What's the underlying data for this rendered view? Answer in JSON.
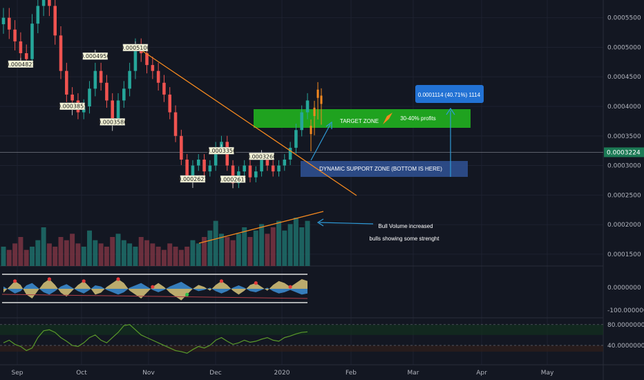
{
  "chart_data": {
    "type": "candlestick",
    "title": "",
    "xlabel": "",
    "ylabel": "",
    "ylim": [
      0.00013,
      0.00058
    ],
    "price_ticks": [
      "0.0005500",
      "0.0005000",
      "0.0004500",
      "0.0004000",
      "0.0003500",
      "0.0003000",
      "0.0002500",
      "0.0002000",
      "0.0001500"
    ],
    "price_tick_values": [
      0.00055,
      0.0005,
      0.00045,
      0.0004,
      0.00035,
      0.0003,
      0.00025,
      0.0002,
      0.00015
    ],
    "time_labels": [
      "Sep",
      "Oct",
      "Nov",
      "Dec",
      "2020",
      "Feb",
      "Mar",
      "Apr",
      "May"
    ],
    "current_price_label": "0.0003224",
    "current_price": 0.0003224,
    "price_series": [
      0.00055,
      0.00053,
      0.00051,
      0.00049,
      0.00048,
      0.00054,
      0.00057,
      0.00058,
      0.00057,
      0.00052,
      0.00046,
      0.00042,
      0.00041,
      0.00039,
      0.0004,
      0.00043,
      0.00046,
      0.00044,
      0.00041,
      0.00038,
      0.00041,
      0.00043,
      0.00046,
      0.0005,
      0.00049,
      0.00047,
      0.00046,
      0.00044,
      0.00042,
      0.00039,
      0.00035,
      0.00031,
      0.00028,
      0.0003,
      0.00031,
      0.00029,
      0.0003,
      0.00033,
      0.00034,
      0.0003,
      0.00027,
      0.00029,
      0.0003,
      0.00028,
      0.00029,
      0.00031,
      0.0003,
      0.00029,
      0.0003,
      0.00031,
      0.00033,
      0.00036,
      0.00039,
      0.00041
    ],
    "swing_labels": [
      {
        "text": "0.0004821",
        "index": 3,
        "value": 0.0004821
      },
      {
        "text": "0.0003851",
        "index": 12,
        "value": 0.0003851
      },
      {
        "text": "0.0004956",
        "index": 16,
        "value": 0.0004956
      },
      {
        "text": "0.0003586",
        "index": 19,
        "value": 0.0003586
      },
      {
        "text": "0.0005100",
        "index": 23,
        "value": 0.00051
      },
      {
        "text": "0.0002621",
        "index": 33,
        "value": 0.0002621
      },
      {
        "text": "0.0003356",
        "index": 38,
        "value": 0.0003356
      },
      {
        "text": "0.0002617",
        "index": 40,
        "value": 0.0002617
      },
      {
        "text": "0.0003260",
        "index": 45,
        "value": 0.000326
      }
    ],
    "volume_series": [
      6,
      5,
      7,
      9,
      5,
      6,
      8,
      12,
      7,
      6,
      9,
      8,
      10,
      7,
      6,
      11,
      8,
      7,
      6,
      9,
      10,
      8,
      7,
      6,
      9,
      8,
      7,
      6,
      5,
      7,
      6,
      5,
      6,
      8,
      7,
      9,
      11,
      14,
      10,
      9,
      8,
      10,
      12,
      9,
      11,
      13,
      10,
      12,
      14,
      11,
      13,
      15,
      12,
      14
    ],
    "oscillator_series": [
      -20,
      10,
      40,
      20,
      -30,
      -50,
      -10,
      30,
      50,
      20,
      -20,
      -40,
      -10,
      20,
      40,
      10,
      -30,
      -20,
      10,
      30,
      50,
      30,
      -10,
      -30,
      -50,
      -20,
      10,
      30,
      10,
      -20,
      -40,
      -60,
      -30,
      0,
      20,
      10,
      -10,
      20,
      40,
      20,
      -10,
      -30,
      -10,
      20,
      30,
      10,
      -10,
      20,
      40,
      30,
      10,
      30,
      50,
      40
    ],
    "oscillator_ticks": [
      "0.0000000",
      "-100.0000000"
    ],
    "rsi_series": [
      45,
      50,
      42,
      38,
      30,
      35,
      55,
      68,
      70,
      65,
      55,
      48,
      40,
      38,
      45,
      55,
      60,
      50,
      45,
      55,
      65,
      78,
      80,
      70,
      60,
      55,
      50,
      45,
      40,
      35,
      30,
      28,
      25,
      32,
      38,
      35,
      40,
      50,
      55,
      48,
      42,
      45,
      50,
      46,
      48,
      52,
      55,
      50,
      48,
      55,
      58,
      62,
      65,
      66
    ],
    "rsi_ticks": [
      "80.0000000",
      "40.0000000"
    ],
    "annotations": {
      "projection_label": "0.0001114 (40.71%) 1114",
      "target_zone": "TARGET ZONE",
      "profits": "30-40% profits",
      "support_zone": "DYNAMIC SUPPORT ZONE (BOTTOM IS HERE)",
      "volume_note_line1": "Bull Volume increased",
      "volume_note_line2": "bulls showing some strenght"
    },
    "colors": {
      "up": "#26a69a",
      "down": "#ef5350",
      "background": "#131722",
      "target_zone": "#1fa21f",
      "support_zone": "#2f4f8f",
      "trendline": "#f5891f",
      "arrow": "#2f9bd8",
      "projection_box": "#2272d4",
      "rsi_line": "#5a9a2a"
    }
  }
}
